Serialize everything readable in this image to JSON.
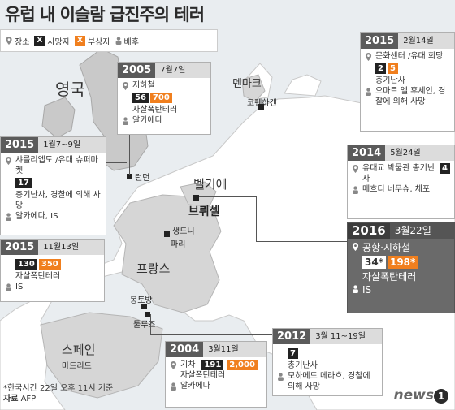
{
  "title": "유럽 내 이슬람 급진주의 테러",
  "legend": {
    "place": "장소",
    "dead_symbol": "X",
    "dead": "사망자",
    "injured_symbol": "X",
    "injured": "부상자",
    "backer": "배후"
  },
  "countries": {
    "uk": "영국",
    "denmark": "덴마크",
    "belgium": "벨기에",
    "france": "프랑스",
    "spain": "스페인"
  },
  "cities": {
    "london": "런던",
    "copenhagen": "코펜하겐",
    "brussels": "브뤼셀",
    "saint_denis": "생드니",
    "paris": "파리",
    "montauban": "몽토방",
    "toulouse": "툴루즈",
    "madrid": "마드리드"
  },
  "events": {
    "e2005": {
      "year": "2005",
      "date": "7월7일",
      "place": "지하철",
      "dead": "56",
      "injured": "700",
      "type": "자살폭탄테러",
      "backer": "알카에다"
    },
    "e2015feb": {
      "year": "2015",
      "date": "2월14일",
      "place": "문화센터 /유대 회당",
      "dead": "2",
      "injured": "5",
      "type": "총기난사",
      "backer": "오마르 엘 후세인, 경찰에 의해 사망"
    },
    "e2015jan": {
      "year": "2015",
      "date": "1월7~9일",
      "place": "샤를리엡도 /유대 슈퍼마켓",
      "dead": "17",
      "type": "총기난사, 경찰에 의해 사망",
      "backer": "알카에다, IS"
    },
    "e2014": {
      "year": "2014",
      "date": "5월24일",
      "place": "유대교 박물관 총기난사",
      "dead": "4",
      "backer": "메흐디 네무슈, 체포"
    },
    "e2016": {
      "year": "2016",
      "date": "3월22일",
      "place": "공항·지하철",
      "dead": "34*",
      "injured": "198*",
      "type": "자살폭탄테러",
      "backer": "IS"
    },
    "e2015nov": {
      "year": "2015",
      "date": "11월13일",
      "dead": "130",
      "injured": "350",
      "type": "자살폭탄테러",
      "backer": "IS"
    },
    "e2004": {
      "year": "2004",
      "date": "3월11일",
      "place": "기차",
      "dead": "191",
      "injured": "2,000",
      "type": "자살폭탄테러",
      "backer": "알카에다"
    },
    "e2012": {
      "year": "2012",
      "date": "3월 11~19일",
      "dead": "7",
      "type": "총기난사",
      "backer": "모하메드 메라흐, 경찰에 의해 사망"
    }
  },
  "footer": {
    "note": "*한국시간 22일 오후 11시 기준",
    "source_label": "자료",
    "source": "AFP"
  },
  "logo": {
    "text": "news",
    "mark": "1"
  },
  "colors": {
    "land": "#ffffff",
    "sea": "#e9edf0",
    "uk_land": "#c9c9c9",
    "dead_box": "#222222",
    "injured_box": "#f07f1e"
  }
}
